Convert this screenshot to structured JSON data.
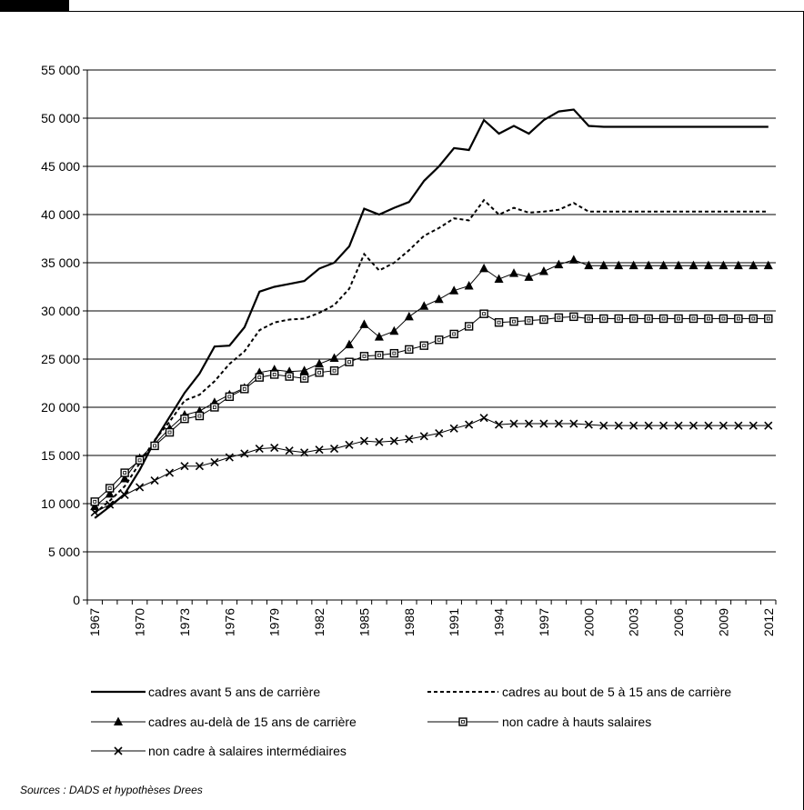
{
  "source_note": "Sources : DADS et hypothèses Drees",
  "chart_data": {
    "type": "line",
    "title": "",
    "xlabel": "",
    "ylabel": "",
    "ylim": [
      0,
      55000
    ],
    "yticks": [
      0,
      5000,
      10000,
      15000,
      20000,
      25000,
      30000,
      35000,
      40000,
      45000,
      50000,
      55000
    ],
    "ytick_labels": [
      "0",
      "5 000",
      "10 000",
      "15 000",
      "20 000",
      "25 000",
      "30 000",
      "35 000",
      "40 000",
      "45 000",
      "50 000",
      "55 000"
    ],
    "xticks": [
      1967,
      1970,
      1973,
      1976,
      1979,
      1982,
      1985,
      1988,
      1991,
      1994,
      1997,
      2000,
      2003,
      2006,
      2009,
      2012
    ],
    "xtick_labels": [
      "1967",
      "1970",
      "1973",
      "1976",
      "1979",
      "1982",
      "1985",
      "1988",
      "1991",
      "1994",
      "1997",
      "2000",
      "2003",
      "2006",
      "2009",
      "2012"
    ],
    "grid": "horizontal",
    "legend_position": "bottom",
    "x": [
      1967,
      1968,
      1969,
      1970,
      1971,
      1972,
      1973,
      1974,
      1975,
      1976,
      1977,
      1978,
      1979,
      1980,
      1981,
      1982,
      1983,
      1984,
      1985,
      1986,
      1987,
      1988,
      1989,
      1990,
      1991,
      1992,
      1993,
      1994,
      1995,
      1996,
      1997,
      1998,
      1999,
      2000,
      2001,
      2002,
      2003,
      2004,
      2005,
      2006,
      2007,
      2008,
      2009,
      2010,
      2011,
      2012
    ],
    "series": [
      {
        "name": "cadres avant 5 ans de carrière",
        "style": "solid-thick",
        "marker": "none",
        "values": [
          8500,
          9700,
          11000,
          13500,
          16500,
          19000,
          21500,
          23500,
          26300,
          26400,
          28300,
          32000,
          32500,
          32800,
          33100,
          34400,
          35000,
          36700,
          40600,
          40000,
          40700,
          41300,
          43500,
          45000,
          46900,
          46700,
          49800,
          48400,
          49200,
          48400,
          49800,
          50700,
          50900,
          49200,
          49100,
          49100,
          49100,
          49100,
          49100,
          49100,
          49100,
          49100,
          49100,
          49100,
          49100,
          49100
        ]
      },
      {
        "name": "cadres au bout de 5 à 15 ans de carrière",
        "style": "dashed",
        "marker": "none",
        "values": [
          9000,
          10300,
          11800,
          14200,
          16600,
          18500,
          20700,
          21300,
          22700,
          24500,
          25800,
          28000,
          28800,
          29100,
          29200,
          29800,
          30600,
          32300,
          35900,
          34200,
          35000,
          36300,
          37800,
          38600,
          39600,
          39400,
          41500,
          40000,
          40700,
          40200,
          40300,
          40500,
          41200,
          40300,
          40300,
          40300,
          40300,
          40300,
          40300,
          40300,
          40300,
          40300,
          40300,
          40300,
          40300,
          40300
        ]
      },
      {
        "name": "cadres au-delà de 15 ans de carrière",
        "style": "solid",
        "marker": "triangle",
        "values": [
          9700,
          11000,
          12600,
          14700,
          16200,
          17800,
          19200,
          19600,
          20500,
          21300,
          22000,
          23600,
          23900,
          23700,
          23800,
          24500,
          25100,
          26500,
          28600,
          27300,
          27900,
          29400,
          30500,
          31200,
          32100,
          32600,
          34400,
          33300,
          33900,
          33500,
          34100,
          34800,
          35300,
          34700,
          34700,
          34700,
          34700,
          34700,
          34700,
          34700,
          34700,
          34700,
          34700,
          34700,
          34700,
          34700
        ]
      },
      {
        "name": "non cadre à hauts salaires",
        "style": "solid",
        "marker": "square",
        "values": [
          10200,
          11600,
          13200,
          14500,
          16000,
          17400,
          18800,
          19100,
          20000,
          21100,
          21900,
          23100,
          23400,
          23200,
          23000,
          23600,
          23800,
          24700,
          25300,
          25400,
          25600,
          26000,
          26400,
          27000,
          27600,
          28400,
          29700,
          28800,
          28900,
          29000,
          29100,
          29300,
          29400,
          29200,
          29200,
          29200,
          29200,
          29200,
          29200,
          29200,
          29200,
          29200,
          29200,
          29200,
          29200,
          29200
        ]
      },
      {
        "name": "non cadre à salaires intermédiaires",
        "style": "solid",
        "marker": "cross",
        "values": [
          9100,
          9900,
          10900,
          11700,
          12400,
          13200,
          13900,
          13900,
          14300,
          14800,
          15200,
          15700,
          15800,
          15500,
          15300,
          15600,
          15700,
          16100,
          16500,
          16400,
          16500,
          16700,
          17000,
          17300,
          17800,
          18200,
          18900,
          18200,
          18300,
          18300,
          18300,
          18300,
          18300,
          18200,
          18100,
          18100,
          18100,
          18100,
          18100,
          18100,
          18100,
          18100,
          18100,
          18100,
          18100,
          18100
        ]
      }
    ]
  }
}
